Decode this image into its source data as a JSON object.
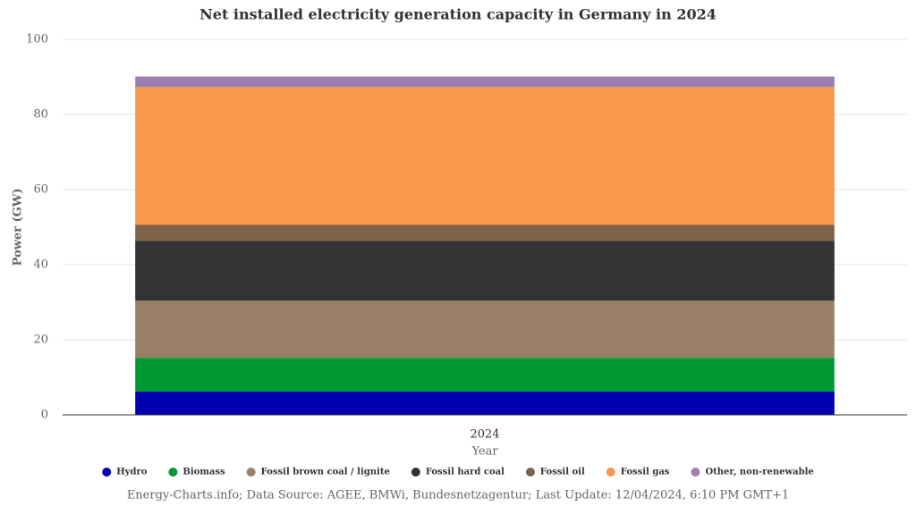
{
  "chart_data": {
    "type": "stacked_bar",
    "title": "Net installed electricity generation capacity in Germany in 2024",
    "x_label": "Year",
    "y_label": "Power (GW)",
    "categories": [
      "2024"
    ],
    "series": [
      {
        "name": "Hydro",
        "color": "#0000b0",
        "values": [
          6.2
        ]
      },
      {
        "name": "Biomass",
        "color": "#009933",
        "values": [
          9.0
        ]
      },
      {
        "name": "Fossil brown coal / lignite",
        "color": "#997f66",
        "values": [
          15.2
        ]
      },
      {
        "name": "Fossil hard coal",
        "color": "#333333",
        "values": [
          15.9
        ]
      },
      {
        "name": "Fossil oil",
        "color": "#7f6247",
        "values": [
          4.3
        ]
      },
      {
        "name": "Fossil gas",
        "color": "#f9974c",
        "values": [
          36.7
        ]
      },
      {
        "name": "Other, non-renewable",
        "color": "#9b7fb0",
        "values": [
          2.8
        ]
      }
    ],
    "ylim": [
      0,
      100
    ],
    "yticks": [
      0,
      20,
      40,
      60,
      80,
      100
    ],
    "grid": true,
    "legend": "bottom",
    "source": "Energy-Charts.info; Data Source: AGEE, BMWi, Bundesnetzagentur; Last Update: 12/04/2024, 6:10 PM GMT+1"
  }
}
